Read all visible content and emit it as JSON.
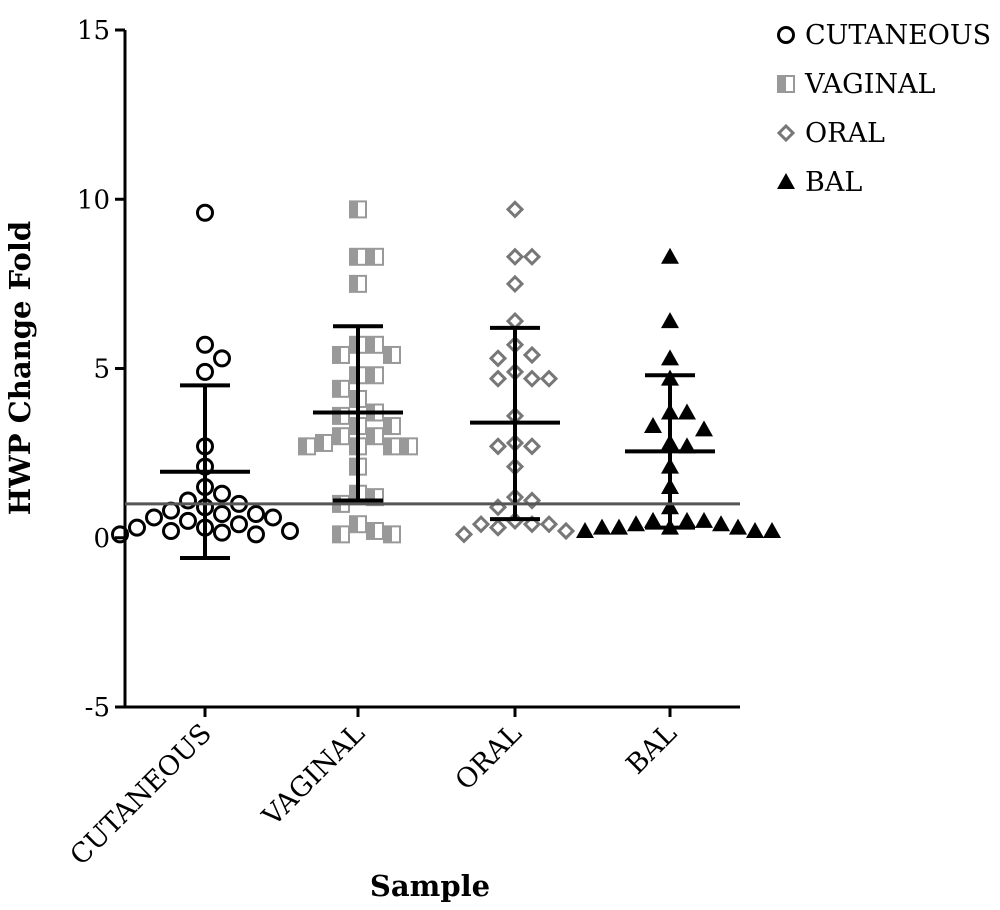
{
  "chart_data": {
    "type": "scatter",
    "title": "",
    "xlabel": "Sample",
    "ylabel": "HWP Change Fold",
    "ylim": [
      -5,
      15
    ],
    "yticks": [
      "-5",
      "0",
      "5",
      "10",
      "15"
    ],
    "categories": [
      "CUTANEOUS",
      "VAGINAL",
      "ORAL",
      "BAL"
    ],
    "reference_line": 1,
    "legend_position": "top-right",
    "grid": false,
    "colors": {
      "cutaneous": "#000000",
      "vaginal": "#999999",
      "oral": "#777777",
      "bal": "#000000",
      "axis": "#000000",
      "reference": "#555555"
    },
    "series": [
      {
        "name": "CUTANEOUS",
        "marker": "open-circle",
        "values": [
          9.6,
          5.7,
          5.3,
          4.9,
          2.7,
          2.1,
          1.5,
          1.3,
          1.1,
          1.0,
          0.9,
          0.8,
          0.7,
          0.7,
          0.6,
          0.6,
          0.5,
          0.4,
          0.3,
          0.3,
          0.2,
          0.2,
          0.15,
          0.1,
          0.1
        ],
        "mean": 1.95,
        "sd_low": -0.6,
        "sd_high": 4.5
      },
      {
        "name": "VAGINAL",
        "marker": "half-filled-square",
        "values": [
          9.7,
          8.3,
          8.3,
          7.5,
          5.7,
          5.7,
          5.4,
          5.4,
          4.8,
          4.8,
          4.4,
          4.1,
          3.7,
          3.6,
          3.3,
          3.3,
          3.0,
          3.0,
          2.8,
          2.7,
          2.7,
          2.7,
          2.7,
          2.1,
          1.3,
          1.2,
          1.0,
          0.4,
          0.2,
          0.1,
          0.1
        ],
        "mean": 3.7,
        "sd_low": 1.1,
        "sd_high": 6.25
      },
      {
        "name": "ORAL",
        "marker": "open-diamond",
        "values": [
          9.7,
          8.3,
          8.3,
          7.5,
          6.4,
          5.7,
          5.4,
          5.3,
          4.9,
          4.7,
          4.7,
          4.7,
          3.6,
          2.8,
          2.7,
          2.7,
          2.1,
          1.2,
          1.1,
          0.9,
          0.5,
          0.4,
          0.4,
          0.4,
          0.3,
          0.2,
          0.1
        ],
        "mean": 3.4,
        "sd_low": 0.55,
        "sd_high": 6.2
      },
      {
        "name": "BAL",
        "marker": "filled-triangle",
        "values": [
          8.3,
          6.4,
          5.3,
          4.7,
          3.7,
          3.7,
          3.3,
          3.2,
          2.8,
          2.7,
          2.1,
          1.5,
          0.9,
          0.5,
          0.5,
          0.5,
          0.4,
          0.4,
          0.3,
          0.3,
          0.3,
          0.3,
          0.2,
          0.2,
          0.2
        ],
        "mean": 2.55,
        "sd_low": 0.3,
        "sd_high": 4.8
      }
    ]
  }
}
